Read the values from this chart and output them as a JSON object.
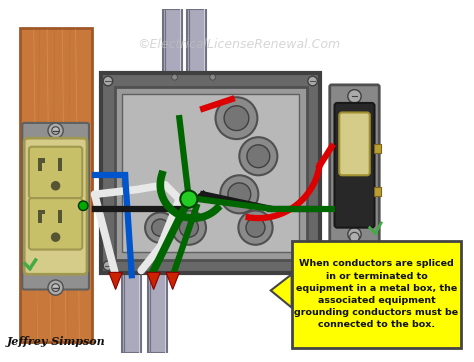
{
  "title": "©ElectricalLicenseRenewal.Com",
  "title_color": "#c0c0c0",
  "author": "Jeffrey Simpson",
  "note_text": "When conductors are spliced\nin or terminated to\nequipment in a metal box, the\nassociated equipment\ngrounding conductors must be\nconnected to the box.",
  "note_bg": "#ffff00",
  "note_border": "#444444",
  "bg_color": "#ffffff",
  "wood_color": "#c8783a",
  "wood_dark": "#a05828",
  "wood_light": "#e0a060",
  "box_outer": "#707070",
  "box_inner": "#909090",
  "box_face": "#b0b0b0",
  "conduit_color": "#aaaabc",
  "conduit_dark": "#707080",
  "conduit_light": "#ccccdc",
  "receptacle_body": "#d4cc88",
  "receptacle_face": "#c8c068",
  "receptacle_dark": "#a09850",
  "switch_outer": "#888888",
  "switch_body": "#282828",
  "switch_toggle": "#d4cc88",
  "wire_red": "#dd0000",
  "wire_black": "#181818",
  "wire_white": "#e8e8e8",
  "wire_green": "#006600",
  "wire_blue": "#0055cc",
  "green_dot": "#22cc22",
  "arrow_yellow": "#ffff00",
  "arrow_tip_red": "#cc2200",
  "green_tick": "#44aa44"
}
